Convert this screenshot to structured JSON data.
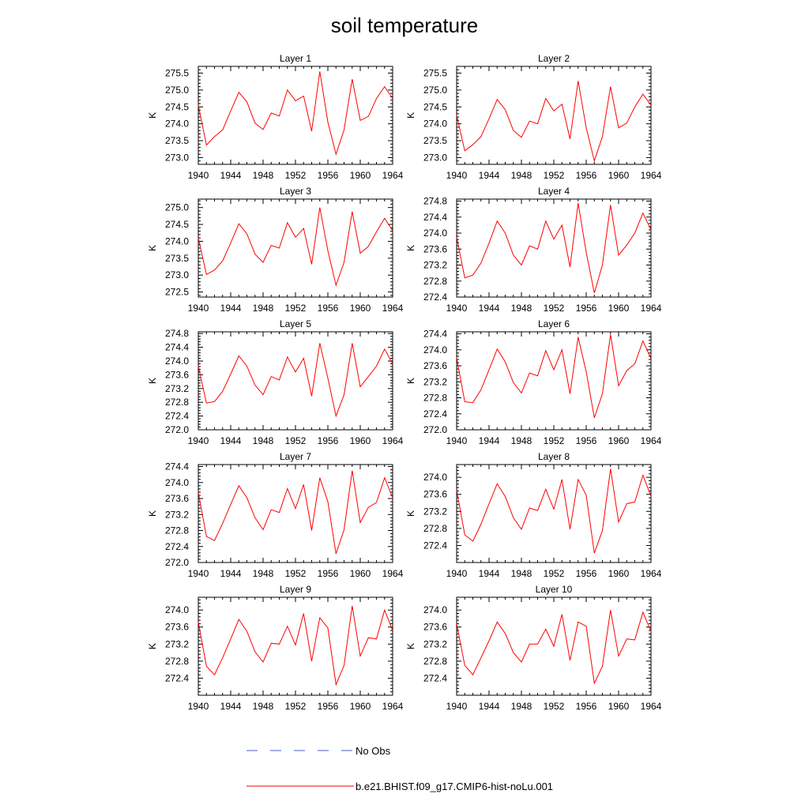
{
  "figure": {
    "title": "soil temperature"
  },
  "legend": [
    {
      "label": "No Obs",
      "color": "#4b5bd6",
      "dash": true
    },
    {
      "label": "b.e21.BHIST.f09_g17.CMIP6-hist-noLu.001",
      "color": "#ff0000",
      "dash": false
    }
  ],
  "chart_data": [
    {
      "type": "line",
      "title": "Layer 1",
      "ylabel": "K",
      "xlim": [
        1940,
        1964
      ],
      "ylim": [
        272.8,
        275.7
      ],
      "xticks": [
        1940,
        1944,
        1948,
        1952,
        1956,
        1960,
        1964
      ],
      "yticks": [
        "273.0",
        "273.5",
        "274.0",
        "274.5",
        "275.0",
        "275.5"
      ],
      "series": [
        {
          "color": "#ff0000",
          "x": [
            1940,
            1941,
            1942,
            1943,
            1944,
            1945,
            1946,
            1947,
            1948,
            1949,
            1950,
            1951,
            1952,
            1953,
            1954,
            1955,
            1956,
            1957,
            1958,
            1959,
            1960,
            1961,
            1962,
            1963,
            1964
          ],
          "y": [
            274.55,
            273.37,
            273.62,
            273.82,
            274.38,
            274.93,
            274.65,
            274.02,
            273.83,
            274.32,
            274.23,
            275.0,
            274.68,
            274.82,
            273.78,
            275.55,
            274.05,
            273.1,
            273.82,
            275.32,
            274.1,
            274.22,
            274.75,
            275.1,
            274.75
          ]
        }
      ]
    },
    {
      "type": "line",
      "title": "Layer 2",
      "ylabel": "K",
      "xlim": [
        1940,
        1964
      ],
      "ylim": [
        272.8,
        275.7
      ],
      "xticks": [
        1940,
        1944,
        1948,
        1952,
        1956,
        1960,
        1964
      ],
      "yticks": [
        "273.0",
        "273.5",
        "274.0",
        "274.5",
        "275.0",
        "275.5"
      ],
      "series": [
        {
          "color": "#ff0000",
          "x": [
            1940,
            1941,
            1942,
            1943,
            1944,
            1945,
            1946,
            1947,
            1948,
            1949,
            1950,
            1951,
            1952,
            1953,
            1954,
            1955,
            1956,
            1957,
            1958,
            1959,
            1960,
            1961,
            1962,
            1963,
            1964
          ],
          "y": [
            274.25,
            273.2,
            273.38,
            273.62,
            274.15,
            274.72,
            274.42,
            273.8,
            273.6,
            274.08,
            274.0,
            274.75,
            274.38,
            274.58,
            273.55,
            275.27,
            273.88,
            272.9,
            273.62,
            275.1,
            273.88,
            274.02,
            274.5,
            274.88,
            274.55
          ]
        }
      ]
    },
    {
      "type": "line",
      "title": "Layer 3",
      "ylabel": "K",
      "xlim": [
        1940,
        1964
      ],
      "ylim": [
        272.35,
        275.25
      ],
      "xticks": [
        1940,
        1944,
        1948,
        1952,
        1956,
        1960,
        1964
      ],
      "yticks": [
        "272.5",
        "273.0",
        "273.5",
        "274.0",
        "274.5",
        "275.0"
      ],
      "series": [
        {
          "color": "#ff0000",
          "x": [
            1940,
            1941,
            1942,
            1943,
            1944,
            1945,
            1946,
            1947,
            1948,
            1949,
            1950,
            1951,
            1952,
            1953,
            1954,
            1955,
            1956,
            1957,
            1958,
            1959,
            1960,
            1961,
            1962,
            1963,
            1964
          ],
          "y": [
            274.1,
            273.02,
            273.15,
            273.42,
            273.95,
            274.52,
            274.22,
            273.62,
            273.38,
            273.88,
            273.8,
            274.55,
            274.12,
            274.38,
            273.32,
            275.0,
            273.72,
            272.7,
            273.38,
            274.88,
            273.65,
            273.85,
            274.28,
            274.68,
            274.32
          ]
        }
      ]
    },
    {
      "type": "line",
      "title": "Layer 4",
      "ylabel": "K",
      "xlim": [
        1940,
        1964
      ],
      "ylim": [
        272.4,
        274.85
      ],
      "xticks": [
        1940,
        1944,
        1948,
        1952,
        1956,
        1960,
        1964
      ],
      "yticks": [
        "272.4",
        "272.8",
        "273.2",
        "273.6",
        "274.0",
        "274.4",
        "274.8"
      ],
      "series": [
        {
          "color": "#ff0000",
          "x": [
            1940,
            1941,
            1942,
            1943,
            1944,
            1945,
            1946,
            1947,
            1948,
            1949,
            1950,
            1951,
            1952,
            1953,
            1954,
            1955,
            1956,
            1957,
            1958,
            1959,
            1960,
            1961,
            1962,
            1963,
            1964
          ],
          "y": [
            273.9,
            272.88,
            272.95,
            273.25,
            273.75,
            274.3,
            274.0,
            273.45,
            273.2,
            273.68,
            273.6,
            274.3,
            273.85,
            274.2,
            273.15,
            274.75,
            273.52,
            272.5,
            273.2,
            274.7,
            273.45,
            273.7,
            274.0,
            274.5,
            274.08
          ]
        }
      ]
    },
    {
      "type": "line",
      "title": "Layer 5",
      "ylabel": "K",
      "xlim": [
        1940,
        1964
      ],
      "ylim": [
        272.0,
        274.85
      ],
      "xticks": [
        1940,
        1944,
        1948,
        1952,
        1956,
        1960,
        1964
      ],
      "yticks": [
        "272.0",
        "272.4",
        "272.8",
        "273.2",
        "273.6",
        "274.0",
        "274.4",
        "274.8"
      ],
      "series": [
        {
          "color": "#ff0000",
          "x": [
            1940,
            1941,
            1942,
            1943,
            1944,
            1945,
            1946,
            1947,
            1948,
            1949,
            1950,
            1951,
            1952,
            1953,
            1954,
            1955,
            1956,
            1957,
            1958,
            1959,
            1960,
            1961,
            1962,
            1963,
            1964
          ],
          "y": [
            273.85,
            272.78,
            272.82,
            273.12,
            273.62,
            274.15,
            273.85,
            273.3,
            273.02,
            273.55,
            273.45,
            274.12,
            273.68,
            274.08,
            272.98,
            274.52,
            273.5,
            272.4,
            273.02,
            274.52,
            273.25,
            273.55,
            273.85,
            274.35,
            273.92
          ]
        }
      ]
    },
    {
      "type": "line",
      "title": "Layer 6",
      "ylabel": "K",
      "xlim": [
        1940,
        1964
      ],
      "ylim": [
        272.0,
        274.45
      ],
      "xticks": [
        1940,
        1944,
        1948,
        1952,
        1956,
        1960,
        1964
      ],
      "yticks": [
        "272.0",
        "272.4",
        "272.8",
        "273.2",
        "273.6",
        "274.0",
        "274.4"
      ],
      "series": [
        {
          "color": "#ff0000",
          "x": [
            1940,
            1941,
            1942,
            1943,
            1944,
            1945,
            1946,
            1947,
            1948,
            1949,
            1950,
            1951,
            1952,
            1953,
            1954,
            1955,
            1956,
            1957,
            1958,
            1959,
            1960,
            1961,
            1962,
            1963,
            1964
          ],
          "y": [
            273.8,
            272.7,
            272.68,
            273.0,
            273.5,
            274.02,
            273.7,
            273.18,
            272.92,
            273.42,
            273.35,
            273.98,
            273.5,
            274.0,
            272.9,
            274.32,
            273.45,
            272.3,
            272.9,
            274.38,
            273.1,
            273.48,
            273.65,
            274.22,
            273.78
          ]
        }
      ]
    },
    {
      "type": "line",
      "title": "Layer 7",
      "ylabel": "K",
      "xlim": [
        1940,
        1964
      ],
      "ylim": [
        272.0,
        274.45
      ],
      "xticks": [
        1940,
        1944,
        1948,
        1952,
        1956,
        1960,
        1964
      ],
      "yticks": [
        "272.0",
        "272.4",
        "272.8",
        "273.2",
        "273.6",
        "274.0",
        "274.4"
      ],
      "series": [
        {
          "color": "#ff0000",
          "x": [
            1940,
            1941,
            1942,
            1943,
            1944,
            1945,
            1946,
            1947,
            1948,
            1949,
            1950,
            1951,
            1952,
            1953,
            1954,
            1955,
            1956,
            1957,
            1958,
            1959,
            1960,
            1961,
            1962,
            1963,
            1964
          ],
          "y": [
            273.75,
            272.65,
            272.55,
            272.98,
            273.45,
            273.92,
            273.62,
            273.12,
            272.82,
            273.32,
            273.25,
            273.85,
            273.35,
            273.95,
            272.8,
            274.12,
            273.52,
            272.22,
            272.82,
            274.3,
            273.0,
            273.38,
            273.5,
            274.12,
            273.62
          ]
        }
      ]
    },
    {
      "type": "line",
      "title": "Layer 8",
      "ylabel": "K",
      "xlim": [
        1940,
        1964
      ],
      "ylim": [
        272.0,
        274.3
      ],
      "xticks": [
        1940,
        1944,
        1948,
        1952,
        1956,
        1960,
        1964
      ],
      "yticks": [
        "272.4",
        "272.8",
        "273.2",
        "273.6",
        "274.0"
      ],
      "series": [
        {
          "color": "#ff0000",
          "x": [
            1940,
            1941,
            1942,
            1943,
            1944,
            1945,
            1946,
            1947,
            1948,
            1949,
            1950,
            1951,
            1952,
            1953,
            1954,
            1955,
            1956,
            1957,
            1958,
            1959,
            1960,
            1961,
            1962,
            1963,
            1964
          ],
          "y": [
            273.7,
            272.65,
            272.5,
            272.9,
            273.38,
            273.85,
            273.55,
            273.05,
            272.78,
            273.28,
            273.22,
            273.72,
            273.25,
            273.95,
            272.78,
            273.95,
            273.58,
            272.22,
            272.75,
            274.2,
            272.95,
            273.38,
            273.42,
            274.05,
            273.55
          ]
        }
      ]
    },
    {
      "type": "line",
      "title": "Layer 9",
      "ylabel": "K",
      "xlim": [
        1940,
        1964
      ],
      "ylim": [
        272.0,
        274.3
      ],
      "xticks": [
        1940,
        1944,
        1948,
        1952,
        1956,
        1960,
        1964
      ],
      "yticks": [
        "272.4",
        "272.8",
        "273.2",
        "273.6",
        "274.0"
      ],
      "series": [
        {
          "color": "#ff0000",
          "x": [
            1940,
            1941,
            1942,
            1943,
            1944,
            1945,
            1946,
            1947,
            1948,
            1949,
            1950,
            1951,
            1952,
            1953,
            1954,
            1955,
            1956,
            1957,
            1958,
            1959,
            1960,
            1961,
            1962,
            1963,
            1964
          ],
          "y": [
            273.72,
            272.68,
            272.48,
            272.88,
            273.32,
            273.78,
            273.5,
            273.02,
            272.78,
            273.22,
            273.2,
            273.62,
            273.18,
            273.92,
            272.8,
            273.82,
            273.58,
            272.25,
            272.7,
            274.1,
            272.92,
            273.35,
            273.32,
            274.0,
            273.52
          ]
        }
      ]
    },
    {
      "type": "line",
      "title": "Layer 10",
      "ylabel": "K",
      "xlim": [
        1940,
        1964
      ],
      "ylim": [
        272.0,
        274.3
      ],
      "xticks": [
        1940,
        1944,
        1948,
        1952,
        1956,
        1960,
        1964
      ],
      "yticks": [
        "272.4",
        "272.8",
        "273.2",
        "273.6",
        "274.0"
      ],
      "series": [
        {
          "color": "#ff0000",
          "x": [
            1940,
            1941,
            1942,
            1943,
            1944,
            1945,
            1946,
            1947,
            1948,
            1949,
            1950,
            1951,
            1952,
            1953,
            1954,
            1955,
            1956,
            1957,
            1958,
            1959,
            1960,
            1961,
            1962,
            1963,
            1964
          ],
          "y": [
            273.68,
            272.7,
            272.48,
            272.88,
            273.28,
            273.72,
            273.45,
            273.0,
            272.78,
            273.2,
            273.2,
            273.55,
            273.15,
            273.9,
            272.82,
            273.72,
            273.62,
            272.28,
            272.68,
            274.0,
            272.92,
            273.32,
            273.3,
            273.95,
            273.5
          ]
        }
      ]
    }
  ]
}
